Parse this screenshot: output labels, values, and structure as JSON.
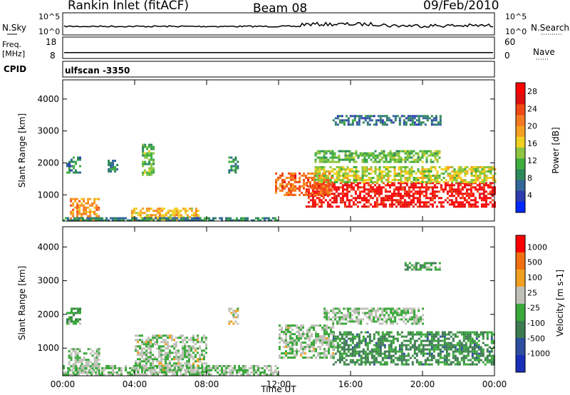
{
  "header": {
    "title": "Rankin Inlet (fitACF)",
    "beam": "Beam 08",
    "date": "09/Feb/2010"
  },
  "noise_panel": {
    "left_label": "N.Sky",
    "left_ticks": [
      "10^5",
      "10^0"
    ],
    "right_ticks": [
      "10^5",
      "10^0"
    ],
    "right_label": "N.Search"
  },
  "freq_panel": {
    "left_label_line1": "Freq.",
    "left_label_line2": "[MHz]",
    "left_ticks": [
      "18",
      "8"
    ],
    "right_ticks": [
      "60",
      "0"
    ],
    "right_label": "Nave",
    "freq_value": 10.5
  },
  "cpid_panel": {
    "label": "CPID",
    "value": "ulfscan -3350"
  },
  "chart_data": [
    {
      "type": "heatmap",
      "title": "",
      "xlabel": "Time UT",
      "ylabel": "Slant Range [km]",
      "xlim": [
        0,
        24
      ],
      "ylim": [
        180,
        4600
      ],
      "x_ticks": [
        "00:00",
        "04:00",
        "08:00",
        "12:00",
        "16:00",
        "20:00",
        "00:00"
      ],
      "y_ticks": [
        "1000",
        "2000",
        "3000",
        "4000"
      ],
      "colorbar": {
        "label": "Power [dB]",
        "ticks": [
          "4",
          "8",
          "12",
          "16",
          "20",
          "24",
          "28"
        ],
        "range": [
          0,
          30
        ],
        "colors": [
          "#0028ff",
          "#2e3cb0",
          "#336699",
          "#2e8a5a",
          "#3fae3f",
          "#8cc63f",
          "#f0d020",
          "#f5a020",
          "#f57a20",
          "#f04a14",
          "#e01010",
          "#ff0000"
        ]
      },
      "regions": [
        {
          "t0": 13.5,
          "t1": 24,
          "r0": 600,
          "r1": 1400,
          "value": 27
        },
        {
          "t0": 11.8,
          "t1": 15,
          "r0": 1000,
          "r1": 1700,
          "value": 22
        },
        {
          "t0": 14,
          "t1": 24,
          "r0": 1400,
          "r1": 1900,
          "value": 15
        },
        {
          "t0": 0.4,
          "t1": 2,
          "r0": 200,
          "r1": 900,
          "value": 20
        },
        {
          "t0": 3.8,
          "t1": 7.5,
          "r0": 200,
          "r1": 600,
          "value": 18
        },
        {
          "t0": 0,
          "t1": 12,
          "r0": 200,
          "r1": 300,
          "value": 8
        },
        {
          "t0": 0.2,
          "t1": 1,
          "r0": 1700,
          "r1": 2200,
          "value": 8
        },
        {
          "t0": 2.5,
          "t1": 3,
          "r0": 1700,
          "r1": 2100,
          "value": 8
        },
        {
          "t0": 4.4,
          "t1": 5,
          "r0": 1600,
          "r1": 2600,
          "value": 12
        },
        {
          "t0": 9.2,
          "t1": 9.7,
          "r0": 1700,
          "r1": 2200,
          "value": 9
        },
        {
          "t0": 14,
          "t1": 21,
          "r0": 2000,
          "r1": 2400,
          "value": 12
        },
        {
          "t0": 15,
          "t1": 21,
          "r0": 3200,
          "r1": 3500,
          "value": 7
        }
      ]
    },
    {
      "type": "heatmap",
      "title": "",
      "xlabel": "Time UT",
      "ylabel": "Slant Range [km]",
      "xlim": [
        0,
        24
      ],
      "ylim": [
        180,
        4600
      ],
      "x_ticks": [
        "00:00",
        "04:00",
        "08:00",
        "12:00",
        "16:00",
        "20:00",
        "00:00"
      ],
      "y_ticks": [
        "1000",
        "2000",
        "3000",
        "4000"
      ],
      "colorbar": {
        "label": "Velocity [m s-1]",
        "ticks": [
          "1000",
          "500",
          "100",
          "25",
          "-25",
          "-100",
          "-500",
          "-1000"
        ],
        "range": [
          -1000,
          1000
        ],
        "colors": [
          "#1a2fb8",
          "#2e4ea0",
          "#3c7a50",
          "#3aa83a",
          "#c0c0b8",
          "#f2a020",
          "#f07010",
          "#ff0000"
        ]
      },
      "regions": [
        {
          "t0": 15,
          "t1": 24,
          "r0": 500,
          "r1": 1500,
          "value": -300
        },
        {
          "t0": 12,
          "t1": 15,
          "r0": 700,
          "r1": 1700,
          "value": 50
        },
        {
          "t0": 14.5,
          "t1": 20,
          "r0": 1700,
          "r1": 2200,
          "value": 0
        },
        {
          "t0": 0,
          "t1": 12,
          "r0": 200,
          "r1": 500,
          "value": 0
        },
        {
          "t0": 0.3,
          "t1": 2,
          "r0": 300,
          "r1": 1000,
          "value": 20
        },
        {
          "t0": 4,
          "t1": 8,
          "r0": 300,
          "r1": 1400,
          "value": 60
        },
        {
          "t0": 0.2,
          "t1": 1,
          "r0": 1700,
          "r1": 2200,
          "value": -150
        },
        {
          "t0": 9.2,
          "t1": 9.7,
          "r0": 1700,
          "r1": 2200,
          "value": 200
        },
        {
          "t0": 19,
          "t1": 21,
          "r0": 3300,
          "r1": 3550,
          "value": -200
        }
      ]
    }
  ]
}
